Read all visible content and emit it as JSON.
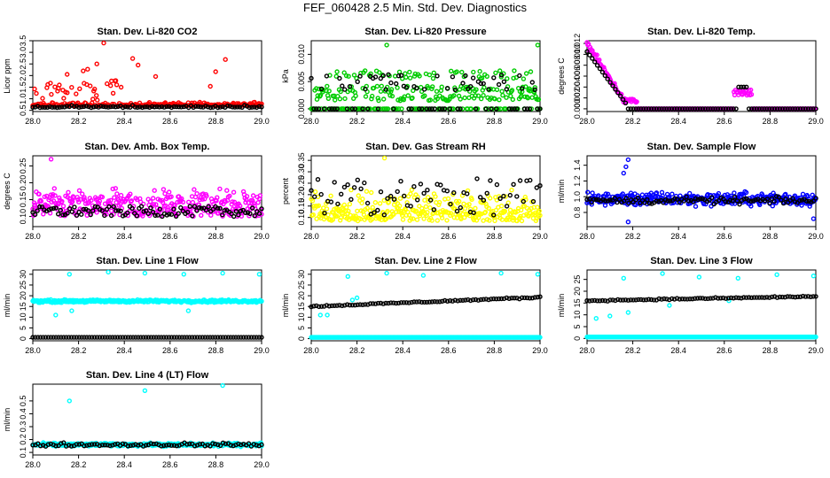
{
  "figure": {
    "title": "FEF_060428  2.5 Min. Std. Dev. Diagnostics"
  },
  "chart_data": [
    {
      "type": "scatter",
      "title": "Stan. Dev. Li-820 CO2",
      "ylabel": "Licor ppm",
      "xlim": [
        28.0,
        29.0
      ],
      "ylim": [
        0.45,
        3.5
      ],
      "xticks": [
        "28.0",
        "28.2",
        "28.4",
        "28.6",
        "28.8",
        "29.0"
      ],
      "yticks": [
        "0.5",
        "1.0",
        "1.5",
        "2.0",
        "2.5",
        "3.0",
        "3.5"
      ],
      "series": [
        {
          "color": "#ff0000",
          "model": "co2_red"
        },
        {
          "color": "#000000",
          "model": "co2_black"
        }
      ]
    },
    {
      "type": "scatter",
      "title": "Stan. Dev. Li-820 Pressure",
      "ylabel": "kPa",
      "xlim": [
        28.0,
        29.0
      ],
      "ylim": [
        -0.0005,
        0.0125
      ],
      "xticks": [
        "28.0",
        "28.2",
        "28.4",
        "28.6",
        "28.8",
        "29.0"
      ],
      "yticks": [
        "0.000",
        "0.005",
        "0.010"
      ],
      "series": [
        {
          "color": "#00cc00",
          "model": "pres_green"
        },
        {
          "color": "#000000",
          "model": "pres_black"
        }
      ]
    },
    {
      "type": "scatter",
      "title": "Stan. Dev. Li-820 Temp.",
      "ylabel": "degrees C",
      "xlim": [
        28.0,
        29.0
      ],
      "ylim": [
        -0.0005,
        0.0125
      ],
      "xticks": [
        "28.0",
        "28.2",
        "28.4",
        "28.6",
        "28.8",
        "29.0"
      ],
      "yticks": [
        "0.000",
        "0.002",
        "0.004",
        "0.006",
        "0.008",
        "0.010",
        "0.012"
      ],
      "series": [
        {
          "color": "#ff00ff",
          "model": "temp_magenta"
        },
        {
          "color": "#000000",
          "model": "temp_black"
        }
      ]
    },
    {
      "type": "scatter",
      "title": "Stan. Dev. Amb. Box Temp.",
      "ylabel": "degrees C",
      "xlim": [
        28.0,
        29.0
      ],
      "ylim": [
        0.07,
        0.28
      ],
      "xticks": [
        "28.0",
        "28.2",
        "28.4",
        "28.6",
        "28.8",
        "29.0"
      ],
      "yticks": [
        "0.10",
        "0.15",
        "0.20",
        "0.25"
      ],
      "series": [
        {
          "color": "#ff00ff",
          "model": "box_magenta"
        },
        {
          "color": "#000000",
          "model": "box_black"
        }
      ]
    },
    {
      "type": "scatter",
      "title": "Stan. Dev. Gas Stream RH",
      "ylabel": "percent",
      "xlim": [
        28.0,
        29.0
      ],
      "ylim": [
        0.06,
        0.37
      ],
      "xticks": [
        "28.0",
        "28.2",
        "28.4",
        "28.6",
        "28.8",
        "29.0"
      ],
      "yticks": [
        "0.10",
        "0.15",
        "0.20",
        "0.25",
        "0.30",
        "0.35"
      ],
      "series": [
        {
          "color": "#ffff00",
          "model": "rh_yellow"
        },
        {
          "color": "#000000",
          "model": "rh_black"
        }
      ]
    },
    {
      "type": "scatter",
      "title": "Stan. Dev. Sample Flow",
      "ylabel": "ml/min",
      "xlim": [
        28.0,
        29.0
      ],
      "ylim": [
        0.62,
        1.52
      ],
      "xticks": [
        "28.0",
        "28.2",
        "28.4",
        "28.6",
        "28.8",
        "29.0"
      ],
      "yticks": [
        "0.8",
        "1.0",
        "1.2",
        "1.4"
      ],
      "series": [
        {
          "color": "#0000ff",
          "model": "flow_blue"
        },
        {
          "color": "#000000",
          "model": "flow_black"
        }
      ]
    },
    {
      "type": "scatter",
      "title": "Stan. Dev. Line 1 Flow",
      "ylabel": "ml/min",
      "xlim": [
        28.0,
        29.0
      ],
      "ylim": [
        -1,
        32
      ],
      "xticks": [
        "28.0",
        "28.2",
        "28.4",
        "28.6",
        "28.8",
        "29.0"
      ],
      "yticks": [
        "0",
        "5",
        "10",
        "15",
        "20",
        "25",
        "30"
      ],
      "series": [
        {
          "color": "#00ffff",
          "model": "l1_cyan"
        },
        {
          "color": "#000000",
          "model": "l1_black"
        }
      ]
    },
    {
      "type": "scatter",
      "title": "Stan. Dev. Line 2 Flow",
      "ylabel": "ml/min",
      "xlim": [
        28.0,
        29.0
      ],
      "ylim": [
        -1,
        32
      ],
      "xticks": [
        "28.0",
        "28.2",
        "28.4",
        "28.6",
        "28.8",
        "29.0"
      ],
      "yticks": [
        "0",
        "5",
        "10",
        "15",
        "20",
        "25",
        "30"
      ],
      "series": [
        {
          "color": "#00ffff",
          "model": "l2_cyan"
        },
        {
          "color": "#000000",
          "model": "l2_black"
        }
      ]
    },
    {
      "type": "scatter",
      "title": "Stan. Dev. Line 3 Flow",
      "ylabel": "ml/min",
      "xlim": [
        28.0,
        29.0
      ],
      "ylim": [
        -1,
        29
      ],
      "xticks": [
        "28.0",
        "28.2",
        "28.4",
        "28.6",
        "28.8",
        "29.0"
      ],
      "yticks": [
        "0",
        "5",
        "10",
        "15",
        "20",
        "25"
      ],
      "series": [
        {
          "color": "#00ffff",
          "model": "l3_cyan"
        },
        {
          "color": "#000000",
          "model": "l3_black"
        }
      ]
    },
    {
      "type": "scatter",
      "title": "Stan. Dev. Line 4 (LT) Flow",
      "ylabel": "ml/min",
      "xlim": [
        28.0,
        29.0
      ],
      "ylim": [
        0.08,
        0.63
      ],
      "xticks": [
        "28.0",
        "28.2",
        "28.4",
        "28.6",
        "28.8",
        "29.0"
      ],
      "yticks": [
        "0.1",
        "0.2",
        "0.3",
        "0.4",
        "0.5"
      ],
      "series": [
        {
          "color": "#00ffff",
          "model": "l4_cyan"
        },
        {
          "color": "#000000",
          "model": "l4_black"
        }
      ]
    }
  ]
}
